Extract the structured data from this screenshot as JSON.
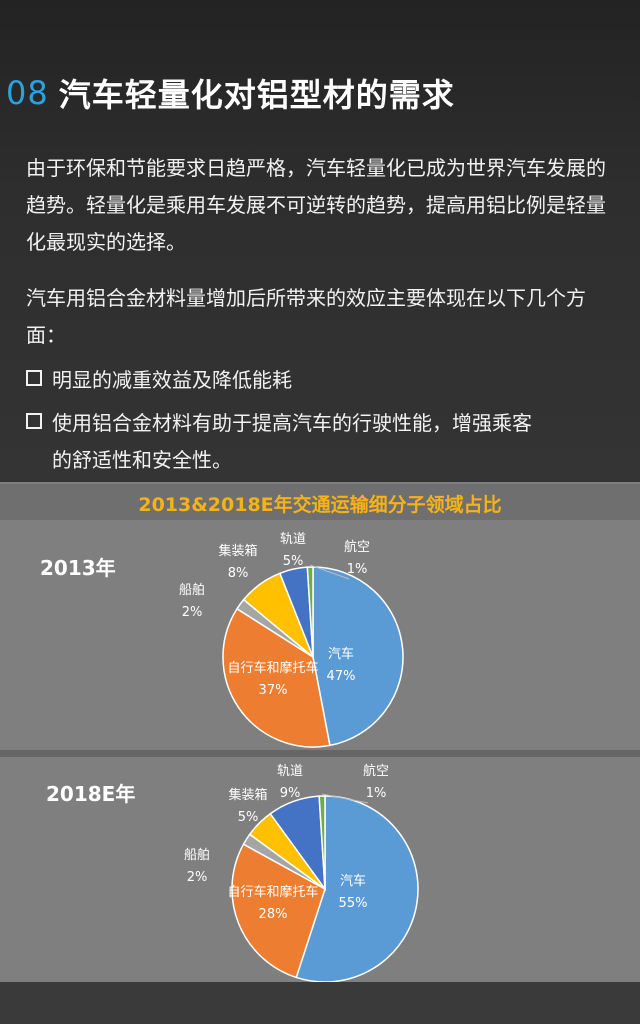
{
  "heading": {
    "number": "08",
    "title": "汽车轻量化对铝型材的需求"
  },
  "paragraphs": [
    "由于环保和节能要求日趋严格，汽车轻量化已成为世界汽车发展的趋势。轻量化是乘用车发展不可逆转的趋势，提高用铝比例是轻量化最现实的选择。",
    "汽车用铝合金材料量增加后所带来的效应主要体现在以下几个方面："
  ],
  "bullets": [
    "明显的减重效益及降低能耗",
    "使用铝合金材料有助于提高汽车的行驶性能，增强乘客",
    "的舒适性和安全性。"
  ],
  "chart_data": [
    {
      "type": "pie",
      "title": "2013&2018E年交通运输细分子领域占比",
      "label": "2013年",
      "slices": [
        {
          "name": "汽车",
          "value": 47,
          "label": "47%",
          "color": "#5b9bd5"
        },
        {
          "name": "自行车和摩托车",
          "value": 37,
          "label": "37%",
          "color": "#ed7d31"
        },
        {
          "name": "船舶",
          "value": 2,
          "label": "2%",
          "color": "#a5a5a5"
        },
        {
          "name": "集装箱",
          "value": 8,
          "label": "8%",
          "color": "#ffc000"
        },
        {
          "name": "轨道",
          "value": 5,
          "label": "5%",
          "color": "#4472c4"
        },
        {
          "name": "航空",
          "value": 1,
          "label": "1%",
          "color": "#70ad47"
        }
      ]
    },
    {
      "type": "pie",
      "label": "2018E年",
      "slices": [
        {
          "name": "汽车",
          "value": 55,
          "label": "55%",
          "color": "#5b9bd5"
        },
        {
          "name": "自行车和摩托车",
          "value": 28,
          "label": "28%",
          "color": "#ed7d31"
        },
        {
          "name": "船舶",
          "value": 2,
          "label": "2%",
          "color": "#a5a5a5"
        },
        {
          "name": "集装箱",
          "value": 5,
          "label": "5%",
          "color": "#ffc000"
        },
        {
          "name": "轨道",
          "value": 9,
          "label": "9%",
          "color": "#4472c4"
        },
        {
          "name": "航空",
          "value": 1,
          "label": "1%",
          "color": "#70ad47"
        }
      ]
    }
  ]
}
